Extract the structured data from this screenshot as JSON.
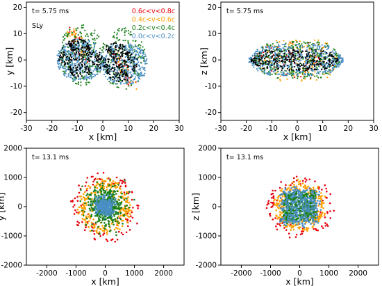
{
  "figure": {
    "panels": [
      {
        "id": "xy-early",
        "time_label": "t= 5.75 ms",
        "eos_label": "SLy",
        "show_legend": true,
        "xlabel": "x [km]",
        "ylabel": "y [km]",
        "xlim": [
          -30,
          30
        ],
        "ylim": [
          -23,
          22
        ],
        "xticks": [
          "-30",
          "-20",
          "-10",
          "0",
          "10",
          "20",
          "30"
        ],
        "xtick_values": [
          -30,
          -20,
          -10,
          0,
          10,
          20,
          30
        ],
        "yticks": [
          "-20",
          "-10",
          "0",
          "10",
          "20"
        ],
        "ytick_values": [
          -20,
          -10,
          0,
          10,
          20
        ]
      },
      {
        "id": "xz-early",
        "time_label": "t= 5.75  ms",
        "eos_label": "",
        "show_legend": false,
        "xlabel": "x [km]",
        "ylabel": "z [km]",
        "xlim": [
          -30,
          30
        ],
        "ylim": [
          -23,
          22
        ],
        "xticks": [
          "-30",
          "-20",
          "-10",
          "0",
          "10",
          "20",
          "30"
        ],
        "xtick_values": [
          -30,
          -20,
          -10,
          0,
          10,
          20,
          30
        ],
        "yticks": [
          "-20",
          "-10",
          "0",
          "10",
          "20"
        ],
        "ytick_values": [
          -20,
          -10,
          0,
          10,
          20
        ]
      },
      {
        "id": "xy-late",
        "time_label": "t= 13.1 ms",
        "eos_label": "",
        "show_legend": false,
        "xlabel": "x [km]",
        "ylabel": "y [km]",
        "xlim": [
          -2700,
          2700
        ],
        "ylim": [
          -2000,
          2000
        ],
        "xticks": [
          "-2000",
          "-1000",
          "0",
          "1000",
          "2000"
        ],
        "xtick_values": [
          -2000,
          -1000,
          0,
          1000,
          2000
        ],
        "yticks": [
          "-2000",
          "-1000",
          "0",
          "1000",
          "2000"
        ],
        "ytick_values": [
          -2000,
          -1000,
          0,
          1000,
          2000
        ]
      },
      {
        "id": "xz-late",
        "time_label": "t= 13.1 ms",
        "eos_label": "",
        "show_legend": false,
        "xlabel": "x [km]",
        "ylabel": "z [km]",
        "xlim": [
          -2700,
          2700
        ],
        "ylim": [
          -2000,
          2000
        ],
        "xticks": [
          "-2000",
          "-1000",
          "0",
          "1000",
          "2000"
        ],
        "xtick_values": [
          -2000,
          -1000,
          0,
          1000,
          2000
        ],
        "yticks": [
          "-2000",
          "-1000",
          "0",
          "1000",
          "2000"
        ],
        "ytick_values": [
          -2000,
          -1000,
          0,
          1000,
          2000
        ]
      }
    ]
  },
  "chart_data": [
    {
      "type": "scatter",
      "panel": "xy-early",
      "title": "",
      "xlabel": "x [km]",
      "ylabel": "y [km]",
      "xlim": [
        -30,
        30
      ],
      "ylim": [
        -23,
        22
      ],
      "grid": false,
      "legend_placement": "top-right",
      "series": [
        {
          "name": "0.6c<v<0.8c",
          "color": "#e8000b",
          "distribution": {
            "shape": "two-arms",
            "extent_x": [
              -13,
              13
            ],
            "extent_y": [
              -12,
              14
            ],
            "count": 60
          }
        },
        {
          "name": "0.4c<v<0.6c",
          "color": "#ff9f00",
          "distribution": {
            "shape": "two-arms",
            "extent_x": [
              -14,
              14
            ],
            "extent_y": [
              -12,
              14
            ],
            "count": 90
          }
        },
        {
          "name": "0.2c<v<0.4c",
          "color": "#1a7f1a",
          "distribution": {
            "shape": "binary-ellipses",
            "extent_x": [
              -18,
              18
            ],
            "extent_y": [
              -12,
              14
            ],
            "count": 420
          }
        },
        {
          "name": "0.0c<v<0.2c",
          "color": "#4a8fc4",
          "distribution": {
            "shape": "binary-ellipses",
            "extent_x": [
              -19,
              19
            ],
            "extent_y": [
              -10,
              8
            ],
            "count": 700
          }
        },
        {
          "name": "",
          "color": "#000000",
          "distribution": {
            "shape": "spiral-core",
            "extent_x": [
              -18,
              15
            ],
            "extent_y": [
              -9,
              8
            ],
            "count": 500
          }
        }
      ]
    },
    {
      "type": "scatter",
      "panel": "xz-early",
      "title": "",
      "xlabel": "x [km]",
      "ylabel": "z [km]",
      "xlim": [
        -30,
        30
      ],
      "ylim": [
        -23,
        22
      ],
      "grid": false,
      "series": [
        {
          "name": "0.6c<v<0.8c",
          "color": "#e8000b",
          "distribution": {
            "shape": "flat-band",
            "extent_x": [
              -15,
              12
            ],
            "extent_y": [
              -7,
              7
            ],
            "count": 60
          }
        },
        {
          "name": "0.4c<v<0.6c",
          "color": "#ff9f00",
          "distribution": {
            "shape": "flat-band",
            "extent_x": [
              -16,
              16
            ],
            "extent_y": [
              -8,
              8
            ],
            "count": 150
          }
        },
        {
          "name": "0.2c<v<0.4c",
          "color": "#1a7f1a",
          "distribution": {
            "shape": "flat-band",
            "extent_x": [
              -17,
              17
            ],
            "extent_y": [
              -7,
              7
            ],
            "count": 350
          }
        },
        {
          "name": "0.0c<v<0.2c",
          "color": "#4a8fc4",
          "distribution": {
            "shape": "flat-band",
            "extent_x": [
              -19,
              18
            ],
            "extent_y": [
              -6,
              6
            ],
            "count": 500
          }
        },
        {
          "name": "",
          "color": "#000000",
          "distribution": {
            "shape": "flat-band",
            "extent_x": [
              -18,
              16
            ],
            "extent_y": [
              -4,
              4
            ],
            "count": 300
          }
        }
      ]
    },
    {
      "type": "scatter",
      "panel": "xy-late",
      "title": "",
      "xlabel": "x [km]",
      "ylabel": "y [km]",
      "xlim": [
        -2700,
        2700
      ],
      "ylim": [
        -2000,
        2000
      ],
      "grid": false,
      "series": [
        {
          "name": "0.6c<v<0.8c",
          "color": "#e8000b",
          "distribution": {
            "shape": "shell",
            "radius_x": 1150,
            "radius_y": 1150,
            "count": 110
          }
        },
        {
          "name": "0.4c<v<0.6c",
          "color": "#ff9f00",
          "distribution": {
            "shape": "shell",
            "radius_x": 850,
            "radius_y": 900,
            "count": 260
          }
        },
        {
          "name": "0.2c<v<0.4c",
          "color": "#1a7f1a",
          "distribution": {
            "shape": "blob",
            "radius_x": 600,
            "radius_y": 650,
            "count": 500
          }
        },
        {
          "name": "0.0c<v<0.2c",
          "color": "#4a8fc4",
          "distribution": {
            "shape": "blob",
            "radius_x": 300,
            "radius_y": 320,
            "count": 300
          }
        }
      ]
    },
    {
      "type": "scatter",
      "panel": "xz-late",
      "title": "",
      "xlabel": "x [km]",
      "ylabel": "z [km]",
      "xlim": [
        -2700,
        2700
      ],
      "ylim": [
        -2000,
        2000
      ],
      "grid": false,
      "series": [
        {
          "name": "0.6c<v<0.8c",
          "color": "#e8000b",
          "distribution": {
            "shape": "shell",
            "radius_x": 1150,
            "radius_y": 1000,
            "count": 100
          }
        },
        {
          "name": "0.4c<v<0.6c",
          "color": "#ff9f00",
          "distribution": {
            "shape": "shell",
            "radius_x": 850,
            "radius_y": 800,
            "count": 260
          }
        },
        {
          "name": "0.2c<v<0.4c",
          "color": "#1a7f1a",
          "distribution": {
            "shape": "box",
            "radius_x": 620,
            "radius_y": 550,
            "count": 500
          }
        },
        {
          "name": "0.0c<v<0.2c",
          "color": "#4a8fc4",
          "distribution": {
            "shape": "box",
            "radius_x": 750,
            "radius_y": 700,
            "count": 350
          }
        }
      ]
    }
  ]
}
